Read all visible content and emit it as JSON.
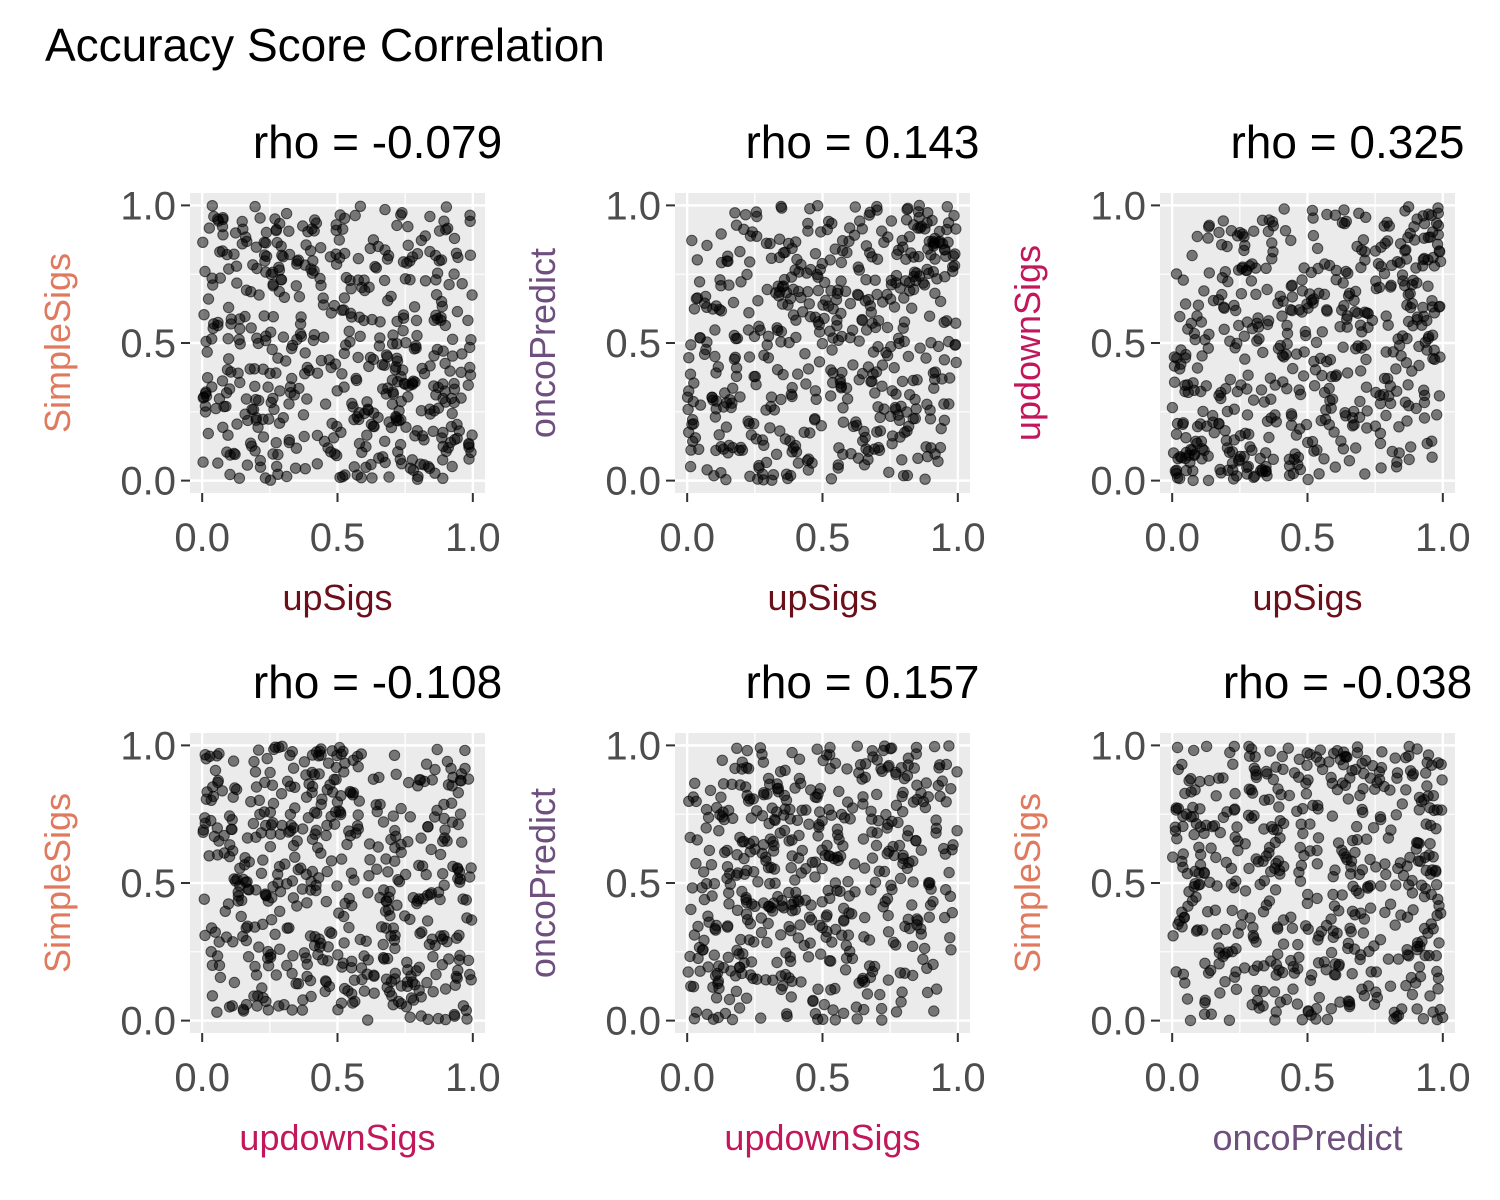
{
  "title": "Accuracy Score Correlation",
  "colors": {
    "SimpleSigs": "#E07A5F",
    "oncoPredict": "#6E4F7E",
    "updownSigs": "#C2185B",
    "upSigs": "#6B0F1A",
    "panel_bg": "#EBEBEB",
    "grid": "#FFFFFF",
    "point": "#000000"
  },
  "chart_data": [
    {
      "type": "scatter",
      "title": "rho = -0.079",
      "xlabel": "upSigs",
      "ylabel": "SimpleSigs",
      "xlim": [
        0,
        1
      ],
      "ylim": [
        0,
        1
      ],
      "ticks": [
        "0.0",
        "0.5",
        "1.0"
      ],
      "tick_values": [
        0,
        0.5,
        1
      ],
      "rho": -0.079,
      "n_points": 500,
      "seed": 11
    },
    {
      "type": "scatter",
      "title": "rho = 0.143",
      "xlabel": "upSigs",
      "ylabel": "oncoPredict",
      "xlim": [
        0,
        1
      ],
      "ylim": [
        0,
        1
      ],
      "ticks": [
        "0.0",
        "0.5",
        "1.0"
      ],
      "tick_values": [
        0,
        0.5,
        1
      ],
      "rho": 0.143,
      "n_points": 500,
      "seed": 23
    },
    {
      "type": "scatter",
      "title": "rho = 0.325",
      "xlabel": "upSigs",
      "ylabel": "updownSigs",
      "xlim": [
        0,
        1
      ],
      "ylim": [
        0,
        1
      ],
      "ticks": [
        "0.0",
        "0.5",
        "1.0"
      ],
      "tick_values": [
        0,
        0.5,
        1
      ],
      "rho": 0.325,
      "n_points": 500,
      "seed": 37
    },
    {
      "type": "scatter",
      "title": "rho = -0.108",
      "xlabel": "updownSigs",
      "ylabel": "SimpleSigs",
      "xlim": [
        0,
        1
      ],
      "ylim": [
        0,
        1
      ],
      "ticks": [
        "0.0",
        "0.5",
        "1.0"
      ],
      "tick_values": [
        0,
        0.5,
        1
      ],
      "rho": -0.108,
      "n_points": 500,
      "seed": 41
    },
    {
      "type": "scatter",
      "title": "rho = 0.157",
      "xlabel": "updownSigs",
      "ylabel": "oncoPredict",
      "xlim": [
        0,
        1
      ],
      "ylim": [
        0,
        1
      ],
      "ticks": [
        "0.0",
        "0.5",
        "1.0"
      ],
      "tick_values": [
        0,
        0.5,
        1
      ],
      "rho": 0.157,
      "n_points": 500,
      "seed": 53
    },
    {
      "type": "scatter",
      "title": "rho = -0.038",
      "xlabel": "oncoPredict",
      "ylabel": "SimpleSigs",
      "xlim": [
        0,
        1
      ],
      "ylim": [
        0,
        1
      ],
      "ticks": [
        "0.0",
        "0.5",
        "1.0"
      ],
      "tick_values": [
        0,
        0.5,
        1
      ],
      "rho": -0.038,
      "n_points": 500,
      "seed": 67
    }
  ]
}
